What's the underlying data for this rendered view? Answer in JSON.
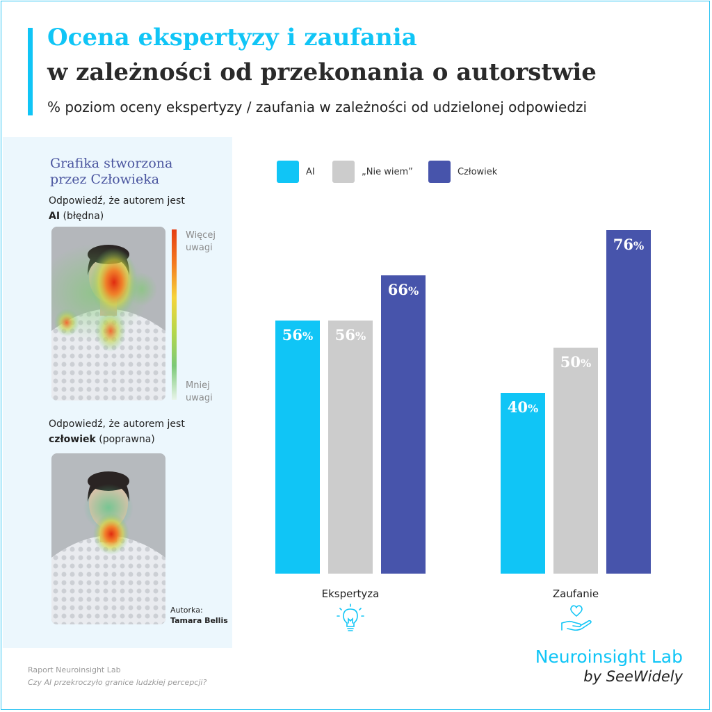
{
  "header": {
    "title_line1": "Ocena ekspertyzy i zaufania",
    "title_line2": "w zależności od przekonania o autorstwie",
    "subtitle": "% poziom oceny ekspertyzy / zaufania w zależności od udzielonej odpowiedzi"
  },
  "left_panel": {
    "heading_line1": "Grafika stworzona",
    "heading_line2": "przez Człowieka",
    "answer1_prefix": "Odpowiedź, że autorem jest",
    "answer1_bold": "AI",
    "answer1_suffix": "(błędna)",
    "answer2_prefix": "Odpowiedź, że autorem jest",
    "answer2_bold": "człowiek",
    "answer2_suffix": "(poprawna)",
    "scale_top_line1": "Więcej",
    "scale_top_line2": "uwagi",
    "scale_bottom_line1": "Mniej",
    "scale_bottom_line2": "uwagi",
    "credit_label": "Autorka:",
    "credit_name": "Tamara Bellis"
  },
  "chart_data": {
    "type": "bar",
    "categories": [
      "Ekspertyza",
      "Zaufanie"
    ],
    "series": [
      {
        "name": "AI",
        "values": [
          56,
          40
        ],
        "color": "#10c5f6"
      },
      {
        "name": "„Nie wiem”",
        "values": [
          56,
          50
        ],
        "color": "#cccccc"
      },
      {
        "name": "Człowiek",
        "values": [
          66,
          76
        ],
        "color": "#4754ab"
      }
    ],
    "value_suffix": "%",
    "ylim": [
      0,
      100
    ],
    "grid": false,
    "legend_position": "top",
    "category_icons": [
      "lightbulb-icon",
      "hand-heart-icon"
    ]
  },
  "footer": {
    "line1": "Raport Neuroinsight Lab",
    "line2": "Czy AI przekroczyło granice ludzkiej percepcji?"
  },
  "brand": {
    "name": "Neuroinsight Lab",
    "tagline": "by SeeWidely"
  }
}
